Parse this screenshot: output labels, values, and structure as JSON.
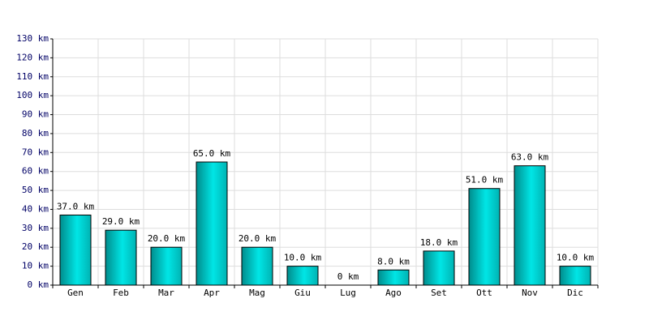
{
  "chart_data": {
    "type": "bar",
    "categories": [
      "Gen",
      "Feb",
      "Mar",
      "Apr",
      "Mag",
      "Giu",
      "Lug",
      "Ago",
      "Set",
      "Ott",
      "Nov",
      "Dic"
    ],
    "values": [
      37,
      29,
      20,
      65,
      20,
      10,
      0,
      8,
      18,
      51,
      63,
      10
    ],
    "value_labels": [
      "37.0 km",
      "29.0 km",
      "20.0 km",
      "65.0 km",
      "20.0 km",
      "10.0 km",
      "0 km",
      "8.0 km",
      "18.0 km",
      "51.0 km",
      "63.0 km",
      "10.0 km"
    ],
    "color": "#00e6e6",
    "ylim": [
      0,
      130
    ],
    "yticks": [
      {
        "value": 0,
        "label": "0 km"
      },
      {
        "value": 10,
        "label": "10 km"
      },
      {
        "value": 20,
        "label": "20 km"
      },
      {
        "value": 30,
        "label": "30 km"
      },
      {
        "value": 40,
        "label": "40 km"
      },
      {
        "value": 50,
        "label": "50 km"
      },
      {
        "value": 60,
        "label": "60 km"
      },
      {
        "value": 70,
        "label": "70 km"
      },
      {
        "value": 80,
        "label": "80 km"
      },
      {
        "value": 90,
        "label": "90 km"
      },
      {
        "value": 100,
        "label": "100 km"
      },
      {
        "value": 110,
        "label": "110 km"
      },
      {
        "value": 120,
        "label": "120 km"
      },
      {
        "value": 130,
        "label": "130 km"
      }
    ],
    "grid": true
  }
}
